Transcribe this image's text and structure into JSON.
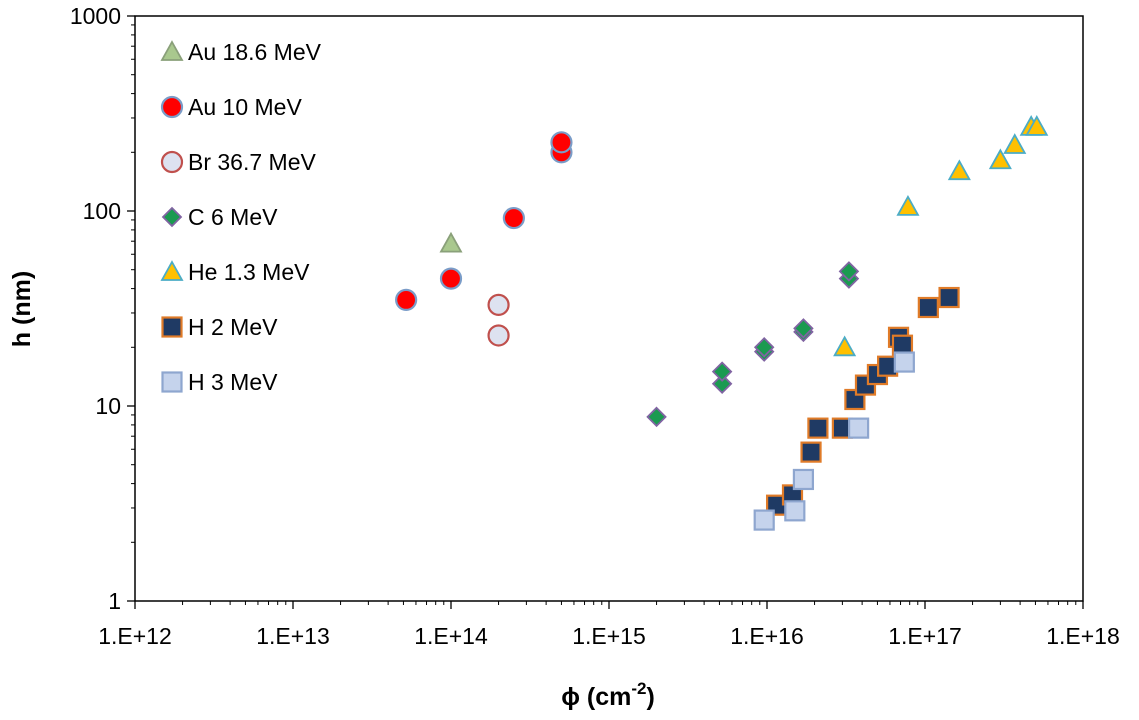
{
  "chart_data": {
    "type": "scatter",
    "x_scale": "log",
    "y_scale": "log",
    "xlim": [
      1000000000000.0,
      1e+18
    ],
    "ylim": [
      1,
      1000
    ],
    "xlabel_main": "ϕ (cm",
    "xlabel_sup": "-2",
    "xlabel_end": ")",
    "ylabel": "h (nm)",
    "x_tick_values": [
      1000000000000.0,
      10000000000000.0,
      100000000000000.0,
      1000000000000000.0,
      1e+16,
      1e+17,
      1e+18
    ],
    "x_tick_labels": [
      "1.E+12",
      "1.E+13",
      "1.E+14",
      "1.E+15",
      "1.E+16",
      "1.E+17",
      "1.E+18"
    ],
    "y_tick_values": [
      1,
      10,
      100,
      1000
    ],
    "y_tick_labels": [
      "1",
      "10",
      "100",
      "1000"
    ],
    "grid": false,
    "legend_position": "top-left",
    "series": [
      {
        "name": "Au 18.6 MeV",
        "marker": "triangle",
        "fill": "#a9c88e",
        "stroke": "#8aa07a",
        "points": [
          [
            100000000000000.0,
            68
          ]
        ]
      },
      {
        "name": "Au 10 MeV",
        "marker": "circle",
        "fill": "#ff0000",
        "stroke": "#7a9cc8",
        "points": [
          [
            52000000000000.0,
            35
          ],
          [
            100000000000000.0,
            45
          ],
          [
            250000000000000.0,
            92
          ],
          [
            500000000000000.0,
            200
          ],
          [
            500000000000000.0,
            225
          ]
        ]
      },
      {
        "name": "Br 36.7 MeV",
        "marker": "circle",
        "fill": "#dde2f0",
        "stroke": "#c0504d",
        "points": [
          [
            200000000000000.0,
            33
          ],
          [
            200000000000000.0,
            23
          ]
        ]
      },
      {
        "name": "C 6 MeV",
        "marker": "diamond",
        "fill": "#1a9a50",
        "stroke": "#8064a2",
        "points": [
          [
            2000000000000000.0,
            8.8
          ],
          [
            5200000000000000.0,
            13
          ],
          [
            5200000000000000.0,
            15
          ],
          [
            9600000000000000.0,
            19
          ],
          [
            9600000000000000.0,
            20
          ],
          [
            1.7e+16,
            24
          ],
          [
            1.7e+16,
            25
          ],
          [
            3.3e+16,
            45
          ],
          [
            3.3e+16,
            49
          ]
        ]
      },
      {
        "name": "He 1.3 MeV",
        "marker": "triangle",
        "fill": "#ffc000",
        "stroke": "#4bacc6",
        "points": [
          [
            3.1e+16,
            20
          ],
          [
            7.8e+16,
            105
          ],
          [
            1.65e+17,
            160
          ],
          [
            3e+17,
            182
          ],
          [
            3.7e+17,
            218
          ],
          [
            4.7e+17,
            270
          ],
          [
            5.1e+17,
            270
          ]
        ]
      },
      {
        "name": "H 2 MeV",
        "marker": "square",
        "fill": "#1f3a64",
        "stroke": "#e07b28",
        "points": [
          [
            1.15e+16,
            3.1
          ],
          [
            1.45e+16,
            3.5
          ],
          [
            1.9e+16,
            5.8
          ],
          [
            2.1e+16,
            7.7
          ],
          [
            3e+16,
            7.7
          ],
          [
            3.6e+16,
            10.8
          ],
          [
            4.2e+16,
            12.8
          ],
          [
            5e+16,
            14.5
          ],
          [
            5.8e+16,
            16
          ],
          [
            6.8e+16,
            22.5
          ],
          [
            7.2e+16,
            20.5
          ],
          [
            1.05e+17,
            32
          ],
          [
            1.42e+17,
            36
          ]
        ]
      },
      {
        "name": "H 3 MeV",
        "marker": "square",
        "fill": "#c5d3ec",
        "stroke": "#8ea6cf",
        "points": [
          [
            9600000000000000.0,
            2.6
          ],
          [
            1.5e+16,
            2.9
          ],
          [
            1.7e+16,
            4.2
          ],
          [
            3.8e+16,
            7.7
          ],
          [
            7.4e+16,
            16.8
          ]
        ]
      }
    ]
  }
}
